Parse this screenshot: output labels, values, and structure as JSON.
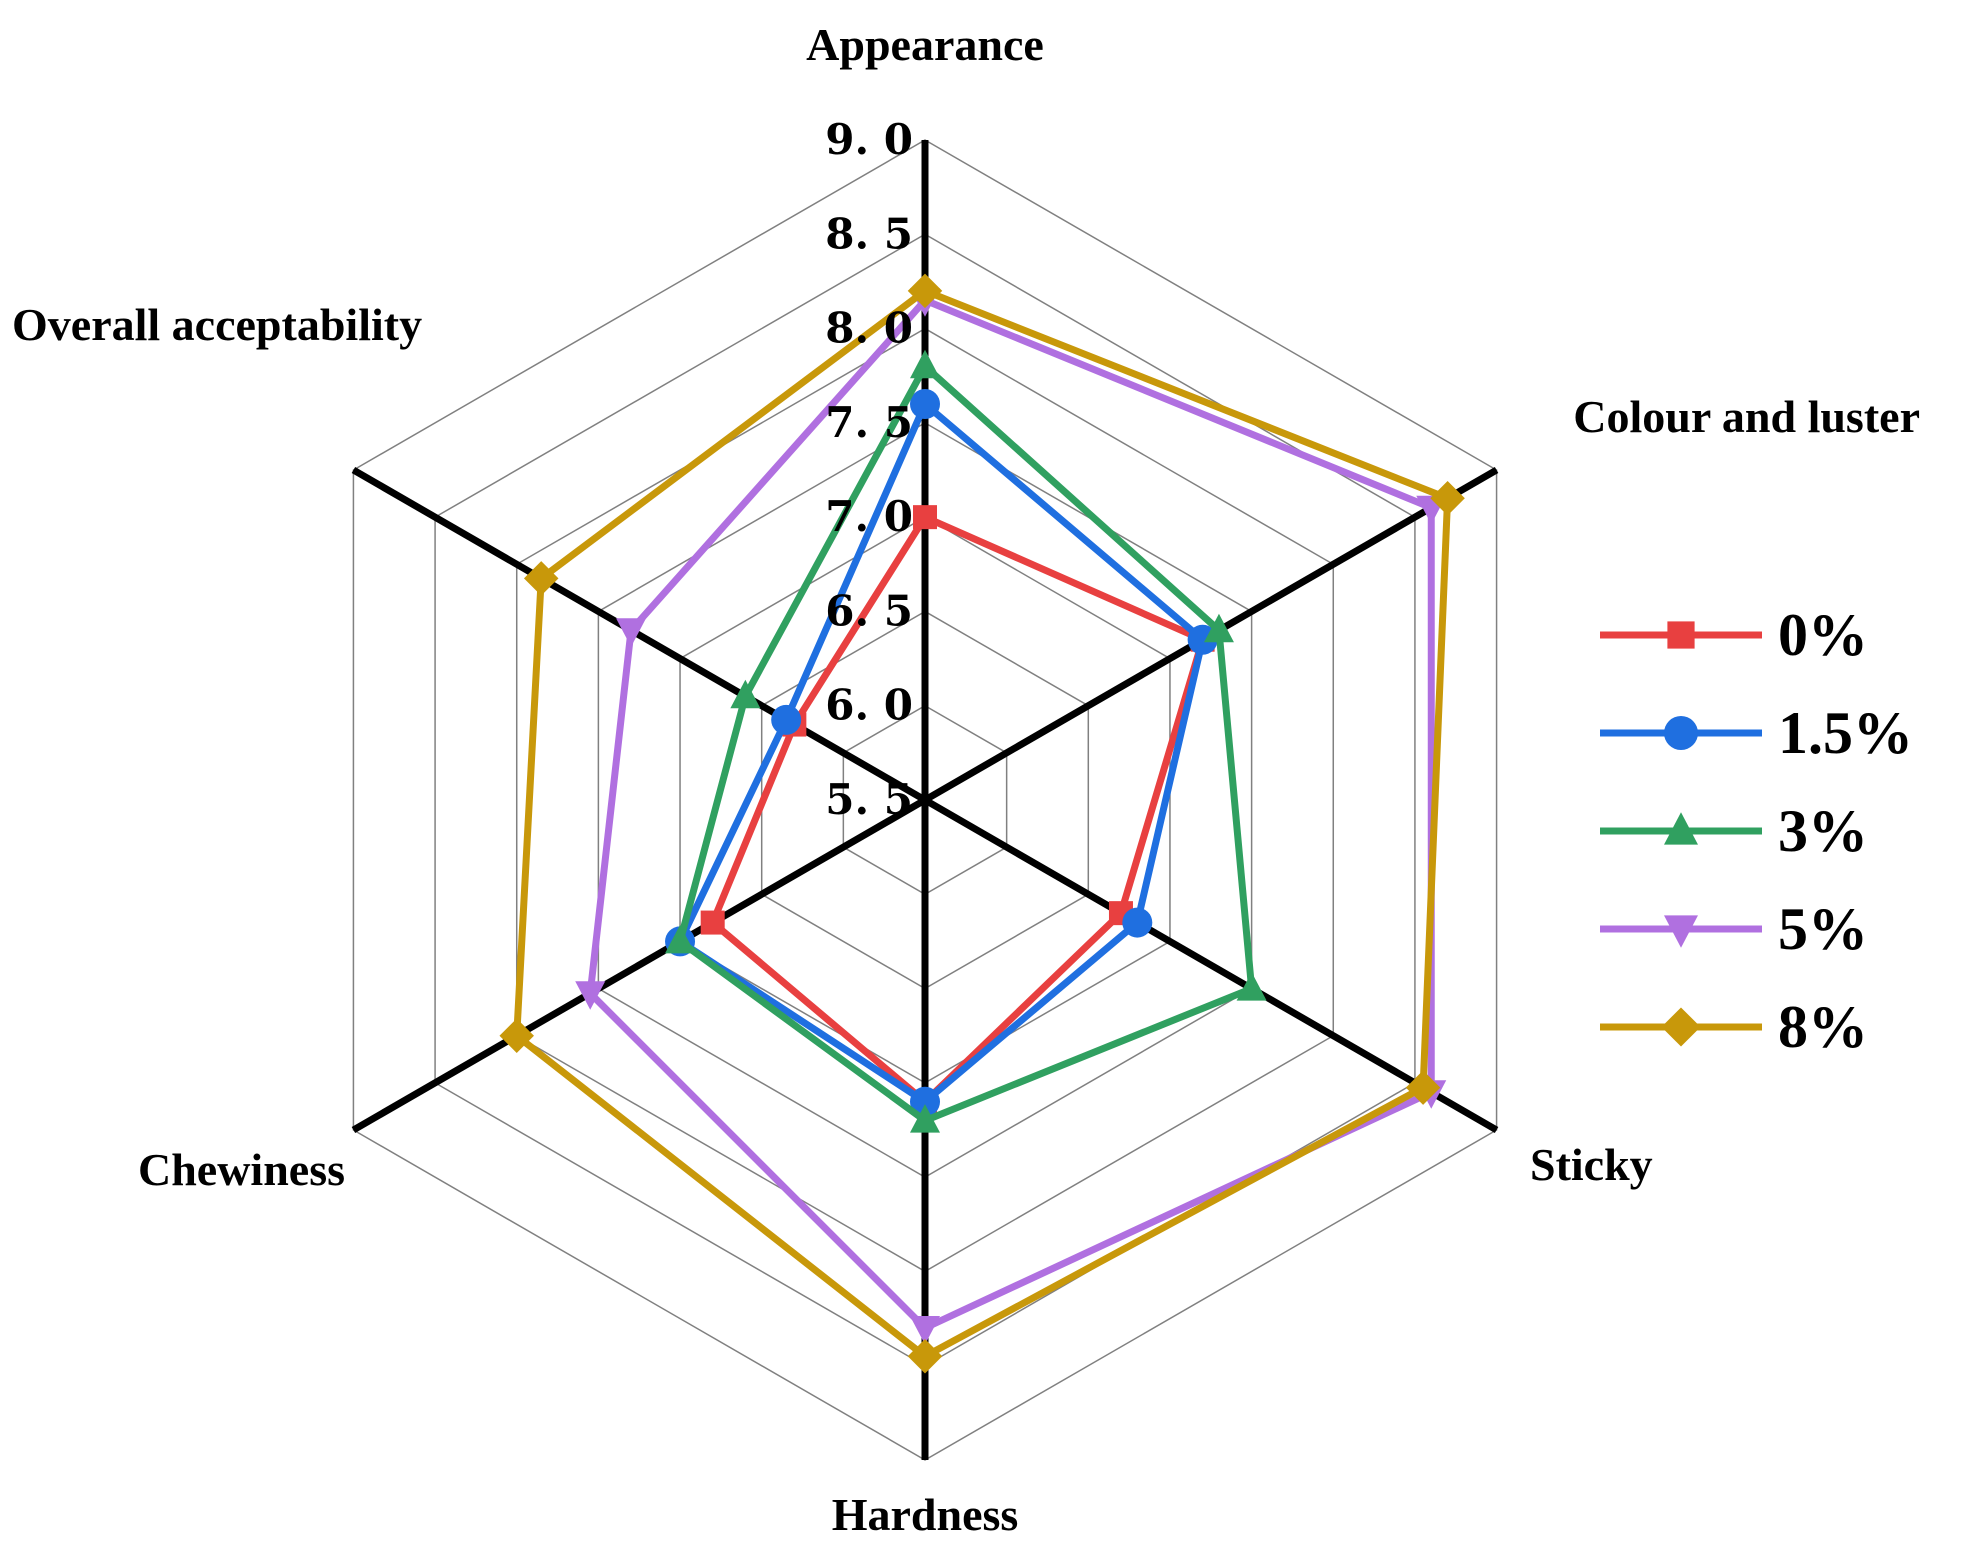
{
  "chart_data": {
    "type": "radar",
    "axes": [
      "Appearance",
      "Colour and luster",
      "Sticky",
      "Hardness",
      "Chewiness",
      "Overall acceptability"
    ],
    "rlim": [
      5.5,
      9.0
    ],
    "ticks": [
      "5. 5",
      "6. 0",
      "6. 5",
      "7. 0",
      "7. 5",
      "8. 0",
      "8. 5",
      "9. 0"
    ],
    "tick_values": [
      5.5,
      6.0,
      6.5,
      7.0,
      7.5,
      8.0,
      8.5,
      9.0
    ],
    "grid": true,
    "legend_position": "right",
    "series": [
      {
        "name": "0%",
        "color": "#e84040",
        "marker": "square",
        "values": [
          7.0,
          7.2,
          6.7,
          7.1,
          6.8,
          6.3
        ]
      },
      {
        "name": "1.5%",
        "color": "#1f6fe0",
        "marker": "circle",
        "values": [
          7.6,
          7.2,
          6.8,
          7.1,
          7.0,
          6.35
        ]
      },
      {
        "name": "3%",
        "color": "#30a060",
        "marker": "triangle-up",
        "values": [
          7.8,
          7.3,
          7.5,
          7.2,
          7.0,
          6.6
        ]
      },
      {
        "name": "5%",
        "color": "#b070e0",
        "marker": "triangle-down",
        "values": [
          8.15,
          8.6,
          8.6,
          8.3,
          7.55,
          7.3
        ]
      },
      {
        "name": "8%",
        "color": "#c8980a",
        "marker": "diamond",
        "values": [
          8.2,
          8.7,
          8.55,
          8.45,
          8.0,
          7.85
        ]
      }
    ]
  }
}
